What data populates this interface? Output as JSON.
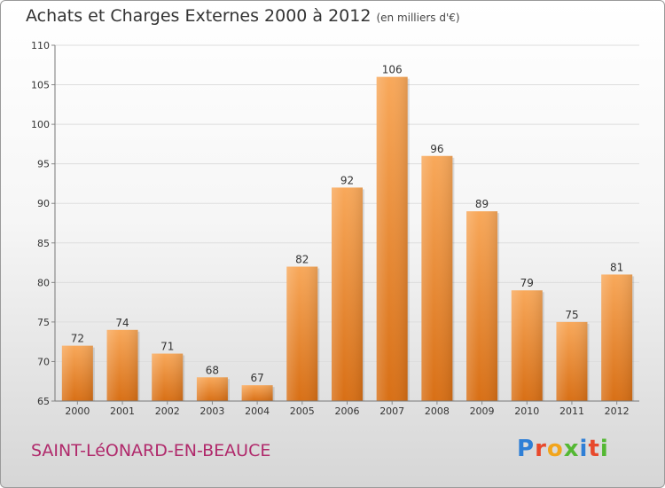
{
  "header": {
    "title": "Achats et Charges Externes 2000 à 2012",
    "subtitle": "(en milliers d'€)"
  },
  "footer": {
    "commune": "SAINT-LéONARD-EN-BEAUCE",
    "commune_color": "#b0296b",
    "logo_letters": [
      {
        "ch": "P",
        "color": "#2f7fd6"
      },
      {
        "ch": "r",
        "color": "#e8492c"
      },
      {
        "ch": "o",
        "color": "#f2a51c"
      },
      {
        "ch": "x",
        "color": "#54b833"
      },
      {
        "ch": "i",
        "color": "#2f7fd6"
      },
      {
        "ch": "t",
        "color": "#e8492c"
      },
      {
        "ch": "i",
        "color": "#54b833"
      }
    ]
  },
  "chart_data": {
    "type": "bar",
    "title": "Achats et Charges Externes 2000 à 2012",
    "subtitle": "(en milliers d'€)",
    "categories": [
      "2000",
      "2001",
      "2002",
      "2003",
      "2004",
      "2005",
      "2006",
      "2007",
      "2008",
      "2009",
      "2010",
      "2011",
      "2012"
    ],
    "values": [
      72,
      74,
      71,
      68,
      67,
      82,
      92,
      106,
      96,
      89,
      79,
      75,
      81
    ],
    "ylim": [
      65,
      110
    ],
    "yticks": [
      65,
      70,
      75,
      80,
      85,
      90,
      95,
      100,
      105,
      110
    ],
    "grid": true,
    "bar_color_top": "#f8a85a",
    "bar_color_bottom": "#d86f15"
  }
}
